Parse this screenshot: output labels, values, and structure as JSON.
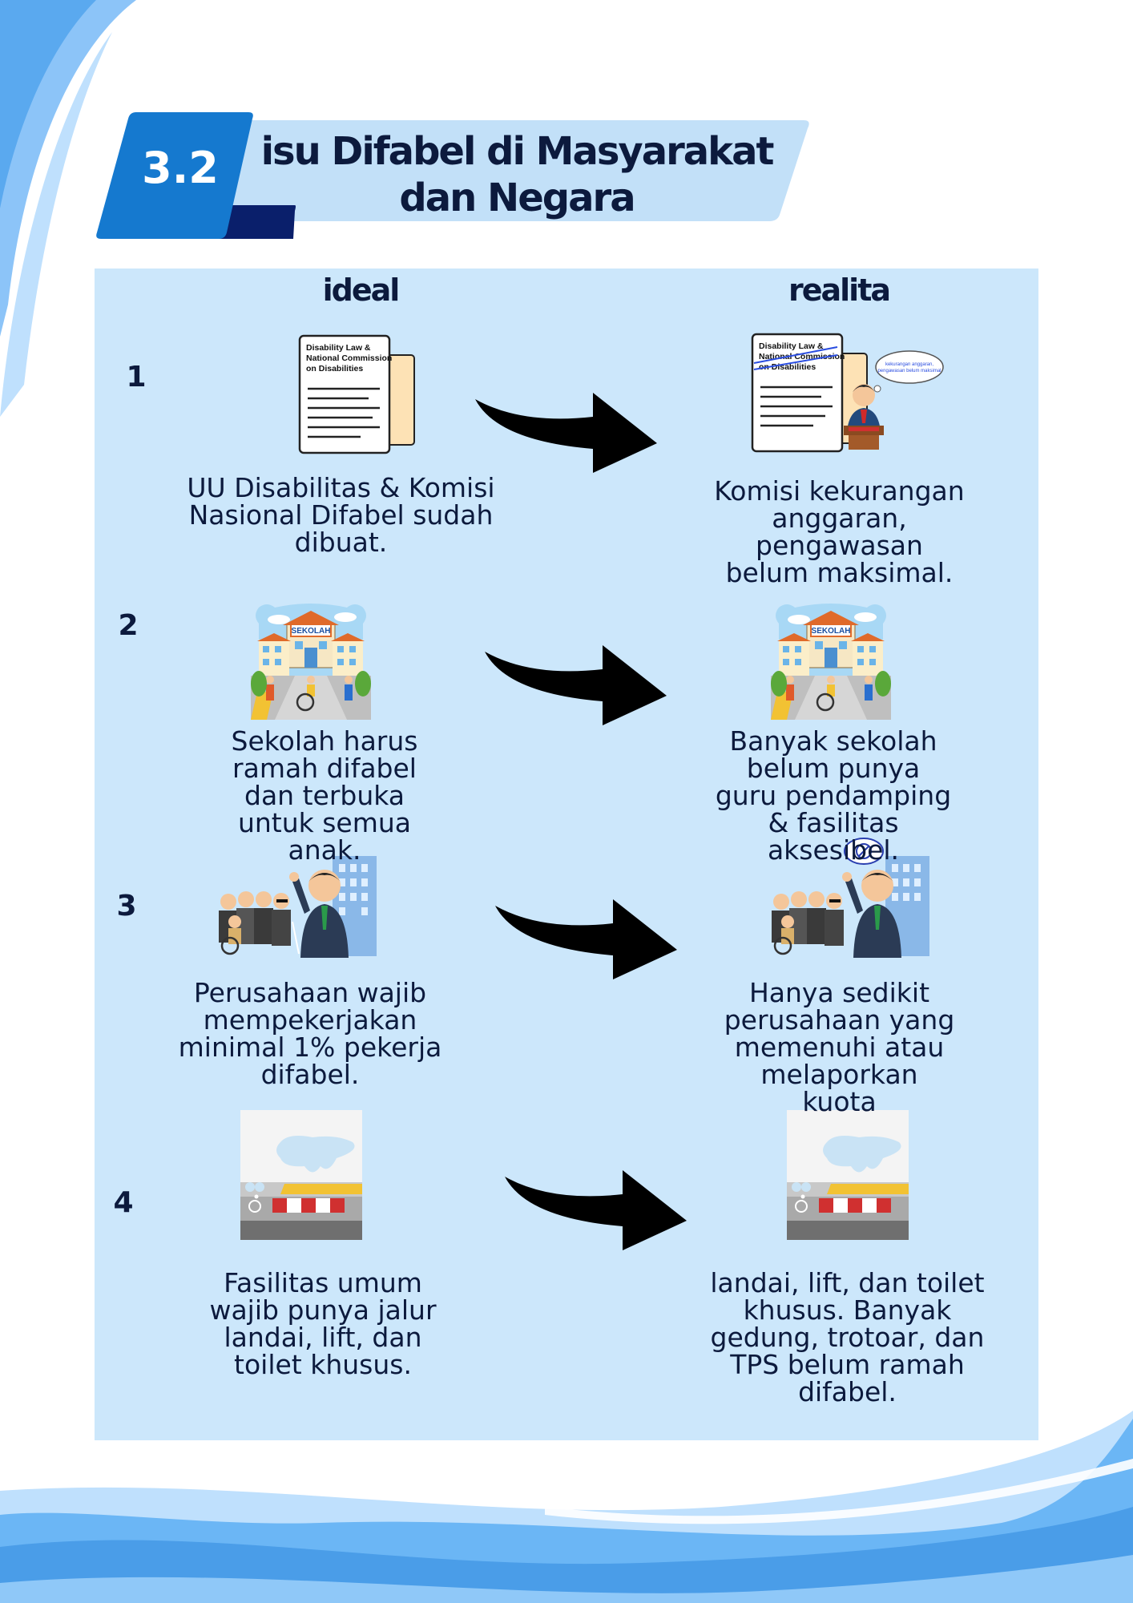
{
  "header": {
    "number": "3.2",
    "title_line1": "isu Difabel di Masyarakat",
    "title_line2": "dan Negara"
  },
  "columns": {
    "left": "ideal",
    "right": "realita"
  },
  "rows": [
    {
      "number": "1",
      "ideal": "UU Disabilitas & Komisi Nasional Difabel sudah dibuat.",
      "realita": "Komisi kekurangan anggaran, pengawasan belum maksimal.",
      "doc_title": "Disability Law & National Commission on Disabilities",
      "bubble_text": "kekurangan anggaran, pengawasan belum maksimal"
    },
    {
      "number": "2",
      "ideal": "Sekolah harus ramah difabel dan terbuka untuk semua anak.",
      "realita": "Banyak sekolah belum punya guru pendamping & fasilitas aksesibel.",
      "school_sign": "SEKOLAH"
    },
    {
      "number": "3",
      "ideal": "Perusahaan wajib mempekerjakan minimal 1% pekerja difabel.",
      "realita": "Hanya sedikit perusahaan yang memenuhi atau melaporkan kuota"
    },
    {
      "number": "4",
      "ideal": "Fasilitas umum wajib punya jalur landai, lift, dan toilet khusus.",
      "realita": "landai, lift, dan toilet khusus. Banyak gedung, trotoar, dan TPS belum ramah difabel."
    }
  ],
  "colors": {
    "panel": "#cce7fb",
    "dark_navy": "#0c1a3d",
    "accent_blue": "#1a7fd4",
    "wave_light": "#9fd0fb"
  }
}
